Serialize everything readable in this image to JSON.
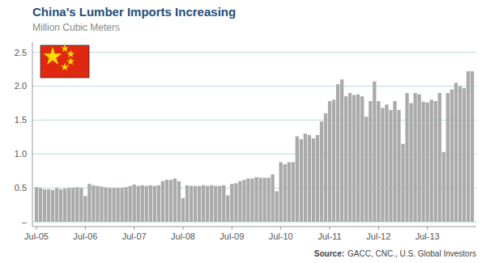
{
  "chart_data": {
    "type": "bar",
    "title": "China's Lumber Imports Increasing",
    "subtitle": "Million Cubic Meters",
    "annotations": [
      "Source:",
      "GACC, CNC., U.S. Global Investors"
    ],
    "color": "#aaaaaa",
    "grid": true,
    "ylim": [
      -0.07,
      2.65
    ],
    "yticks": [
      {
        "value": 0.0,
        "label": "–"
      },
      0.5,
      {
        "value": 1.0,
        "label": "1.0"
      },
      1.5,
      {
        "value": 2.0,
        "label": "2.0"
      },
      2.5
    ],
    "categories": [
      "Jul-05",
      null,
      null,
      null,
      null,
      null,
      null,
      null,
      null,
      null,
      null,
      null,
      "Jul-06",
      null,
      null,
      null,
      null,
      null,
      null,
      null,
      null,
      null,
      null,
      null,
      "Jul-07",
      null,
      null,
      null,
      null,
      null,
      null,
      null,
      null,
      null,
      null,
      null,
      "Jul-08",
      null,
      null,
      null,
      null,
      null,
      null,
      null,
      null,
      null,
      null,
      null,
      "Jul-09",
      null,
      null,
      null,
      null,
      null,
      null,
      null,
      null,
      null,
      null,
      null,
      "Jul-10",
      null,
      null,
      null,
      null,
      null,
      null,
      null,
      null,
      null,
      null,
      null,
      "Jul-11",
      null,
      null,
      null,
      null,
      null,
      null,
      null,
      null,
      null,
      null,
      null,
      "Jul-12",
      null,
      null,
      null,
      null,
      null,
      null,
      null,
      null,
      null,
      null,
      null,
      "Jul-13",
      null,
      null,
      null,
      null,
      null,
      null,
      null,
      null,
      null,
      null,
      null
    ],
    "values": [
      0.51,
      0.5,
      0.48,
      0.48,
      0.47,
      0.5,
      0.48,
      0.49,
      0.5,
      0.5,
      0.51,
      0.5,
      0.38,
      0.56,
      0.54,
      0.53,
      0.52,
      0.51,
      0.5,
      0.5,
      0.5,
      0.5,
      0.51,
      0.53,
      0.55,
      0.53,
      0.54,
      0.53,
      0.54,
      0.53,
      0.54,
      0.6,
      0.62,
      0.62,
      0.64,
      0.6,
      0.35,
      0.54,
      0.53,
      0.53,
      0.53,
      0.54,
      0.53,
      0.54,
      0.53,
      0.53,
      0.54,
      0.39,
      0.56,
      0.57,
      0.6,
      0.62,
      0.64,
      0.64,
      0.66,
      0.65,
      0.65,
      0.65,
      0.7,
      0.45,
      0.88,
      0.85,
      0.88,
      0.88,
      1.26,
      1.22,
      1.3,
      1.28,
      1.23,
      1.28,
      1.48,
      1.6,
      1.78,
      1.8,
      2.03,
      2.1,
      1.85,
      1.9,
      1.87,
      1.88,
      1.85,
      1.55,
      1.78,
      2.07,
      1.78,
      1.68,
      1.73,
      1.65,
      1.78,
      1.65,
      1.15,
      1.9,
      1.75,
      1.9,
      1.88,
      1.77,
      1.76,
      1.8,
      1.78,
      1.9,
      1.03,
      1.9,
      1.95,
      2.05,
      2.0,
      1.97,
      2.22,
      2.22
    ]
  }
}
